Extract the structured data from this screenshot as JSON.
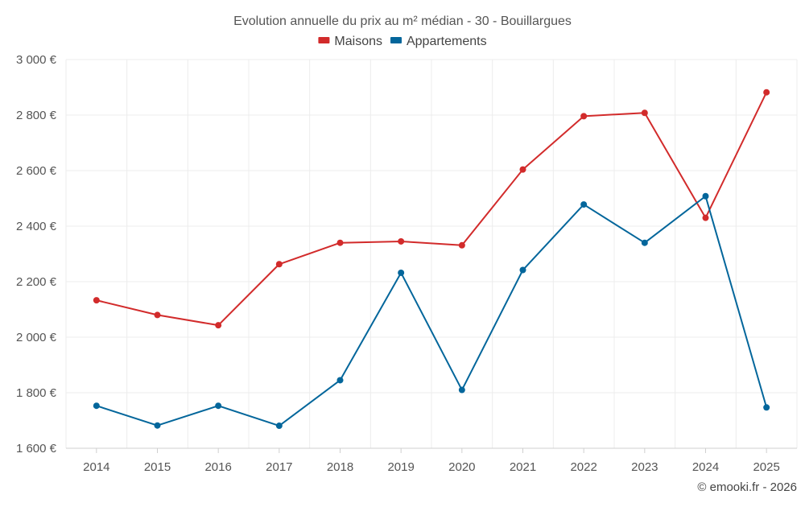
{
  "chart_data": {
    "type": "line",
    "title": "Evolution annuelle du prix au m² médian - 30 - Bouillargues",
    "categories": [
      "2014",
      "2015",
      "2016",
      "2017",
      "2018",
      "2019",
      "2020",
      "2021",
      "2022",
      "2023",
      "2024",
      "2025"
    ],
    "series": [
      {
        "name": "Maisons",
        "color": "#d22b2b",
        "values": [
          2133,
          2080,
          2043,
          2263,
          2340,
          2345,
          2331,
          2604,
          2796,
          2808,
          2430,
          2882
        ]
      },
      {
        "name": "Appartements",
        "color": "#03669b",
        "values": [
          1753,
          1682,
          1753,
          1681,
          1845,
          2232,
          1810,
          2242,
          2478,
          2340,
          2508,
          1747
        ]
      }
    ],
    "ylim": [
      1600,
      3000
    ],
    "yticks": [
      1600,
      1800,
      2000,
      2200,
      2400,
      2600,
      2800,
      3000
    ],
    "ytick_labels": [
      "1 600 €",
      "1 800 €",
      "2 000 €",
      "2 200 €",
      "2 400 €",
      "2 600 €",
      "2 800 €",
      "3 000 €"
    ],
    "xlabel": "",
    "ylabel": "",
    "grid": true,
    "legend_position": "top-center"
  },
  "credit": "© emooki.fr - 2026"
}
